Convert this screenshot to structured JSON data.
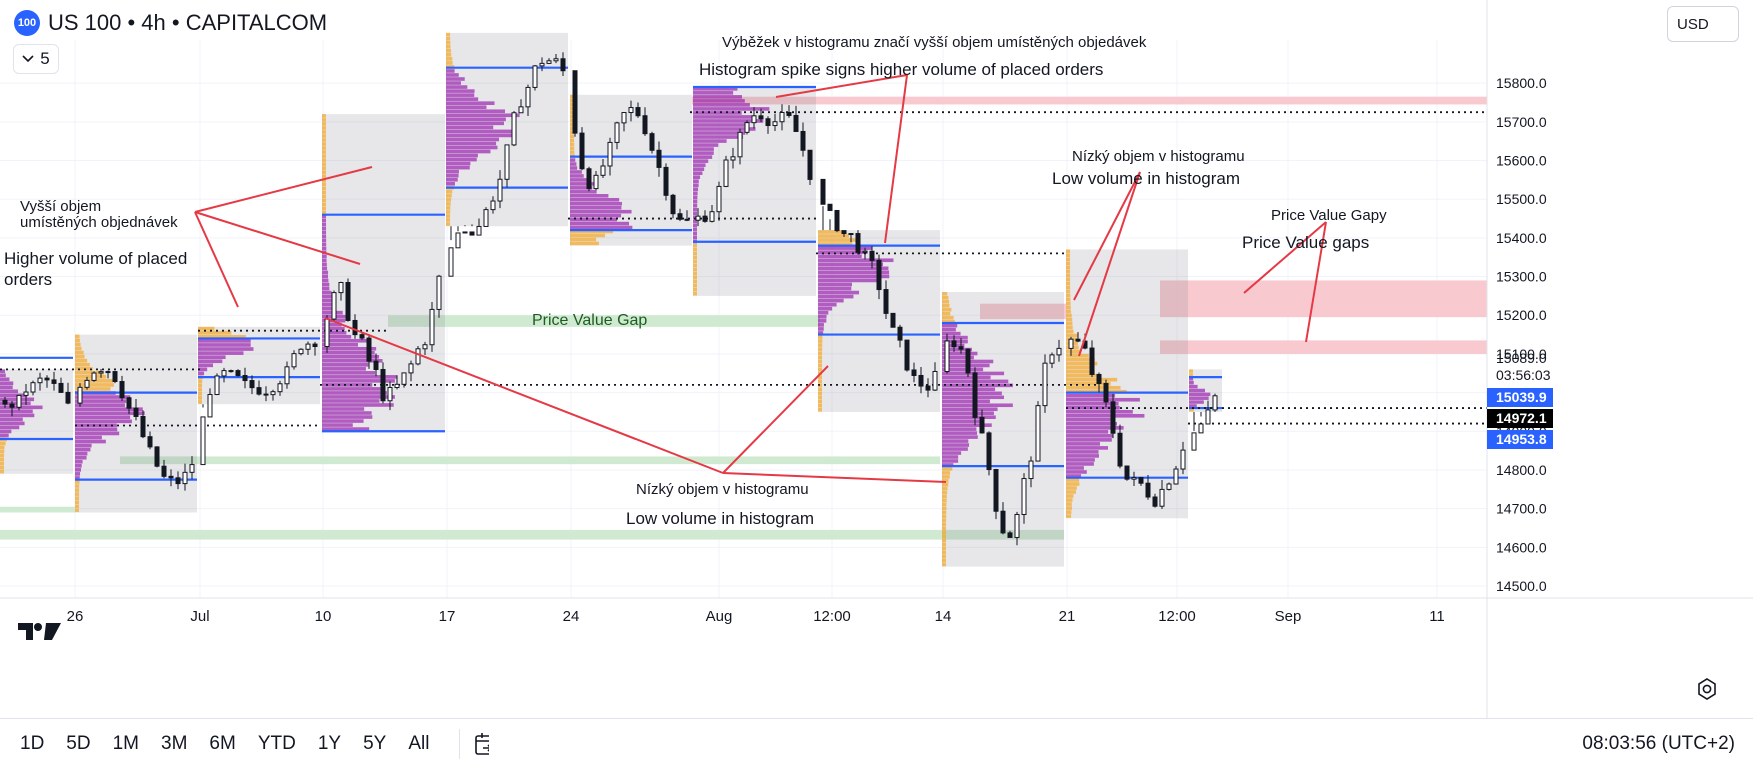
{
  "header": {
    "badge": "100",
    "title": "US 100 • 4h • CAPITALCOM",
    "indicator_count": "5",
    "currency": "USD"
  },
  "bottom": {
    "ranges": [
      "1D",
      "5D",
      "1M",
      "3M",
      "6M",
      "YTD",
      "1Y",
      "5Y",
      "All"
    ],
    "clock": "08:03:56 (UTC+2)"
  },
  "colors": {
    "up": "#26a69a",
    "candle": "#131722",
    "volume_profile_value": "#9c27b0",
    "volume_profile_outer": "#f5a623",
    "poc_line": "#2962ff",
    "gap_red": "#f7c1c8",
    "gap_green": "#c8e6c9",
    "annotation_line": "#e53945"
  },
  "chart_data": {
    "type": "candlestick",
    "title": "US 100 • 4h • CAPITALCOM",
    "ylim": [
      14450,
      15980
    ],
    "y_ticks": [
      14500,
      14600,
      14700,
      14800,
      14900,
      15000,
      15100,
      15200,
      15300,
      15400,
      15500,
      15600,
      15700,
      15800
    ],
    "x_ticks": [
      "26",
      "Jul",
      "10",
      "17",
      "24",
      "Aug",
      "12:00",
      "14",
      "21",
      "12:00",
      "Sep",
      "11"
    ],
    "price_labels": [
      {
        "label": "15089.0",
        "value": 15089,
        "style": "plain"
      },
      {
        "label": "03:56:03",
        "value": 15055,
        "style": "plain"
      },
      {
        "label": "15039.9",
        "value": 15040,
        "style": "blue"
      },
      {
        "label": "14972.1",
        "value": 14972,
        "style": "black"
      },
      {
        "label": "14953.8",
        "value": 14954,
        "style": "blue"
      }
    ],
    "sessions": [
      {
        "x0": 0,
        "x1": 73,
        "hi": 15060,
        "lo": 14790,
        "poc": 14960,
        "vah": 15090,
        "val": 14880
      },
      {
        "x0": 75,
        "x1": 197,
        "hi": 15150,
        "lo": 14690,
        "poc": 14960,
        "vah": 15000,
        "val": 14775
      },
      {
        "x0": 198,
        "x1": 320,
        "hi": 15170,
        "lo": 14970,
        "poc": 15120,
        "vah": 15140,
        "val": 15040
      },
      {
        "x0": 322,
        "x1": 445,
        "hi": 15720,
        "lo": 14900,
        "poc": 15020,
        "vah": 15460,
        "val": 14900
      },
      {
        "x0": 446,
        "x1": 568,
        "hi": 15930,
        "lo": 15430,
        "poc": 15690,
        "vah": 15840,
        "val": 15530
      },
      {
        "x0": 570,
        "x1": 692,
        "hi": 15770,
        "lo": 15380,
        "poc": 15460,
        "vah": 15610,
        "val": 15420
      },
      {
        "x0": 693,
        "x1": 816,
        "hi": 15790,
        "lo": 15250,
        "poc": 15730,
        "vah": 15790,
        "val": 15390
      },
      {
        "x0": 818,
        "x1": 940,
        "hi": 15420,
        "lo": 14950,
        "poc": 15330,
        "vah": 15380,
        "val": 15150
      },
      {
        "x0": 942,
        "x1": 1064,
        "hi": 15260,
        "lo": 14550,
        "poc": 15000,
        "vah": 15180,
        "val": 14810
      },
      {
        "x0": 1066,
        "x1": 1188,
        "hi": 15370,
        "lo": 14675,
        "poc": 14950,
        "vah": 15000,
        "val": 14780
      },
      {
        "x0": 1189,
        "x1": 1222,
        "hi": 15060,
        "lo": 14950,
        "poc": 14990,
        "vah": 15040,
        "val": 14960
      }
    ],
    "price_value_gaps": [
      {
        "color": "green",
        "x0": 388,
        "x1": 820,
        "lo": 15170,
        "hi": 15200
      },
      {
        "color": "green",
        "x0": 120,
        "x1": 940,
        "lo": 14815,
        "hi": 14835
      },
      {
        "color": "green",
        "x0": 0,
        "x1": 1064,
        "lo": 14620,
        "hi": 14645
      },
      {
        "color": "green",
        "x0": 0,
        "x1": 75,
        "lo": 14690,
        "hi": 14705
      },
      {
        "color": "red",
        "x0": 692,
        "x1": 1487,
        "lo": 15745,
        "hi": 15765
      },
      {
        "color": "red",
        "x0": 980,
        "x1": 1066,
        "lo": 15190,
        "hi": 15230
      },
      {
        "color": "red",
        "x0": 1160,
        "x1": 1487,
        "lo": 15195,
        "hi": 15290
      },
      {
        "color": "red",
        "x0": 1160,
        "x1": 1487,
        "lo": 15100,
        "hi": 15135
      }
    ],
    "levels_dotted": [
      15725,
      15450,
      15360,
      15160,
      15060,
      15020,
      14920,
      14960,
      14915
    ],
    "annotations": [
      {
        "key": "cz_spike",
        "text": "Výběžek v histogramu značí vyšší objem umístěných objedávek"
      },
      {
        "key": "en_spike",
        "text": "Histogram spike signs higher volume of placed orders"
      },
      {
        "key": "cz_low_1",
        "text": "Nízký objem v histogramu"
      },
      {
        "key": "en_low_1",
        "text": "Low volume in histogram"
      },
      {
        "key": "cz_pvg",
        "text": "Price Value Gapy"
      },
      {
        "key": "en_pvg",
        "text": "Price Value gaps"
      },
      {
        "key": "cz_high_1",
        "text": "Vyšší objem"
      },
      {
        "key": "cz_high_2",
        "text": "umístěných objednávek"
      },
      {
        "key": "en_high_1",
        "text": "Higher volume of placed"
      },
      {
        "key": "en_high_2",
        "text": "orders"
      },
      {
        "key": "pvg",
        "text": "Price Value Gap"
      },
      {
        "key": "cz_low_2",
        "text": "Nízký objem v histogramu"
      },
      {
        "key": "en_low_2",
        "text": "Low volume in histogram"
      }
    ]
  }
}
